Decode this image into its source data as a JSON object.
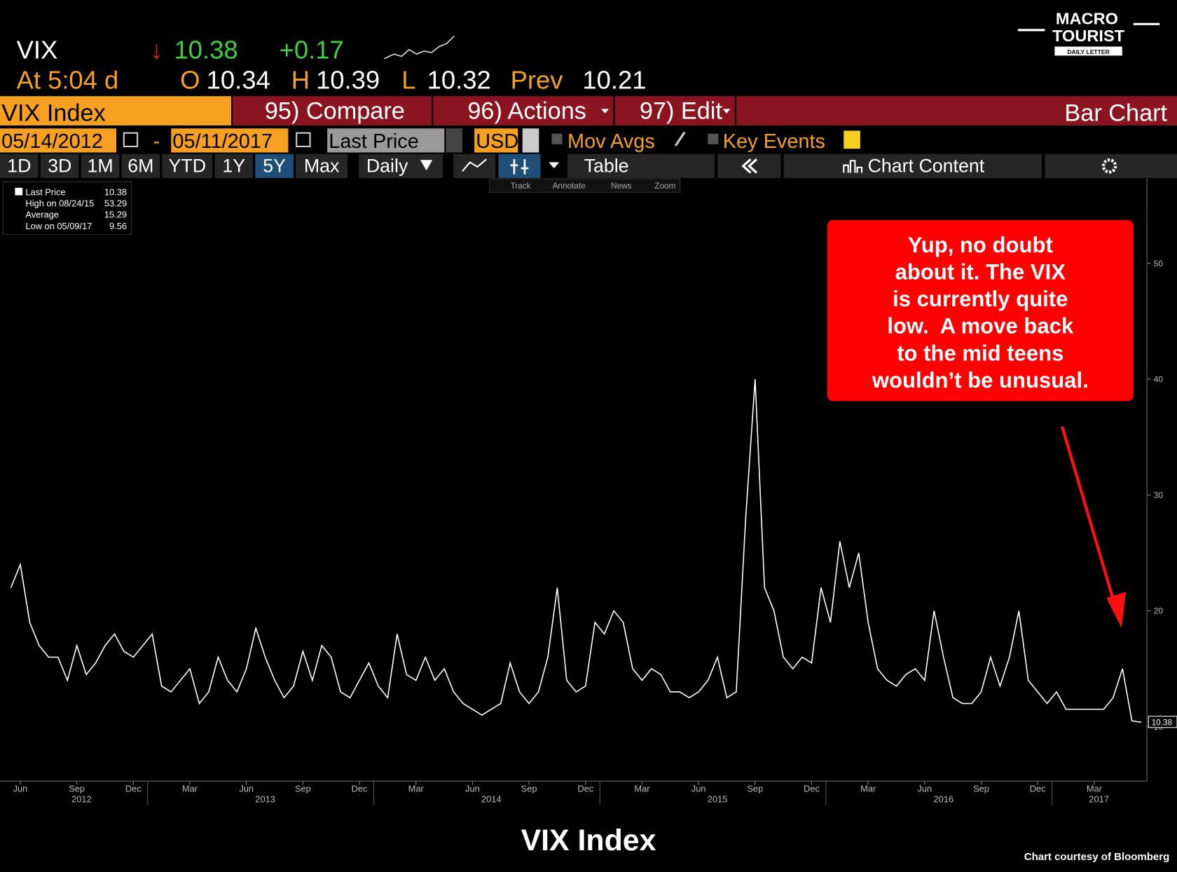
{
  "header": {
    "ticker": "VIX",
    "arrow": "↓",
    "last": "10.38",
    "change": "+0.17",
    "time": "At 5:04 d",
    "open_label": "O",
    "open": "10.34",
    "high_label": "H",
    "high": "10.39",
    "low_label": "L",
    "low": "10.32",
    "prev_label": "Prev",
    "prev": "10.21"
  },
  "logo": {
    "line1": "MACRO",
    "line2": "TOURIST",
    "line3": "DAILY LETTER"
  },
  "toolbar": {
    "security": "VIX Index",
    "compare": "95) Compare",
    "actions": "96) Actions",
    "edit": "97) Edit",
    "view": "Bar Chart",
    "start_date": "05/14/2012",
    "dash": "-",
    "end_date": "05/11/2017",
    "field": "Last Price",
    "currency": "USD",
    "mov_avgs": "Mov Avgs",
    "key_events": "Key Events",
    "periods": [
      "1D",
      "3D",
      "1M",
      "6M",
      "YTD",
      "1Y",
      "5Y",
      "Max"
    ],
    "frequency": "Daily",
    "table": "Table",
    "chart_content": "Chart Content",
    "tools": [
      "Track",
      "Annotate",
      "News",
      "Zoom"
    ]
  },
  "stats": [
    [
      "Last Price",
      "10.38"
    ],
    [
      "High on 08/24/15",
      "53.29"
    ],
    [
      "Average",
      "15.29"
    ],
    [
      "Low on 05/09/17",
      "9.56"
    ]
  ],
  "chart_data": {
    "type": "line",
    "title": "VIX Index",
    "credit": "Chart courtesy of Bloomberg",
    "annotation": [
      "Yup, no doubt",
      "about it. The VIX",
      "is currently quite",
      "low.  A move back",
      "to the mid teens",
      "wouldn’t be unusual."
    ],
    "categories": [
      null,
      "Jun",
      null,
      null,
      null,
      null,
      null,
      "Sep",
      null,
      null,
      null,
      null,
      null,
      "Dec",
      null,
      null,
      null,
      null,
      null,
      "Mar",
      null,
      null,
      null,
      null,
      null,
      "Jun",
      null,
      null,
      null,
      null,
      null,
      "Sep",
      null,
      null,
      null,
      null,
      null,
      "Dec",
      null,
      null,
      null,
      null,
      null,
      "Mar",
      null,
      null,
      null,
      null,
      null,
      "Jun",
      null,
      null,
      null,
      null,
      null,
      "Sep",
      null,
      null,
      null,
      null,
      null,
      "Dec",
      null,
      null,
      null,
      null,
      null,
      "Mar",
      null,
      null,
      null,
      null,
      null,
      "Jun",
      null,
      null,
      null,
      null,
      null,
      "Sep",
      null,
      null,
      null,
      null,
      null,
      "Dec",
      null,
      null,
      null,
      null,
      null,
      "Mar",
      null,
      null,
      null,
      null,
      null,
      "Jun",
      null,
      null,
      null,
      null,
      null,
      "Sep",
      null,
      null,
      null,
      null,
      null,
      "Dec",
      null,
      null,
      null,
      null,
      null,
      "Mar",
      null,
      null,
      null,
      null,
      null
    ],
    "x_groups": [
      "2012",
      "2013",
      "2014",
      "2015",
      "2016",
      "2017"
    ],
    "series": [
      {
        "name": "Last Price",
        "color": "#ffffff",
        "values": [
          22,
          24,
          19,
          17,
          16,
          16,
          14,
          17,
          14.5,
          15.5,
          17,
          18,
          16.5,
          16,
          17,
          18,
          13.5,
          13,
          14,
          15,
          12,
          13,
          16,
          14,
          13,
          15,
          18.5,
          16,
          14,
          12.5,
          13.5,
          16.5,
          14,
          17,
          16,
          13,
          12.5,
          14,
          15.5,
          13.5,
          12.5,
          18,
          14.5,
          14,
          16,
          14,
          15,
          13,
          12,
          11.5,
          11,
          11.5,
          12,
          15.5,
          13,
          12,
          13,
          16,
          22,
          14,
          13,
          13.5,
          19,
          18,
          20,
          19,
          15,
          14,
          15,
          14.5,
          13,
          13,
          12.5,
          13,
          14,
          16,
          12.5,
          13,
          28,
          40,
          22,
          20,
          16,
          15,
          16,
          15.5,
          22,
          19,
          26,
          22,
          25,
          19,
          15,
          14,
          13.5,
          14.5,
          15,
          14,
          20,
          16,
          12.5,
          12,
          12,
          13,
          16,
          13.5,
          16,
          20,
          14,
          13,
          12,
          13,
          11.5,
          11.5,
          11.5,
          11.5,
          11.5,
          12.5,
          15,
          10.5,
          10.38
        ]
      }
    ],
    "ylim": [
      5.3,
      57.3
    ],
    "yticks": [
      10,
      20,
      30,
      40,
      50
    ],
    "grid": false
  }
}
